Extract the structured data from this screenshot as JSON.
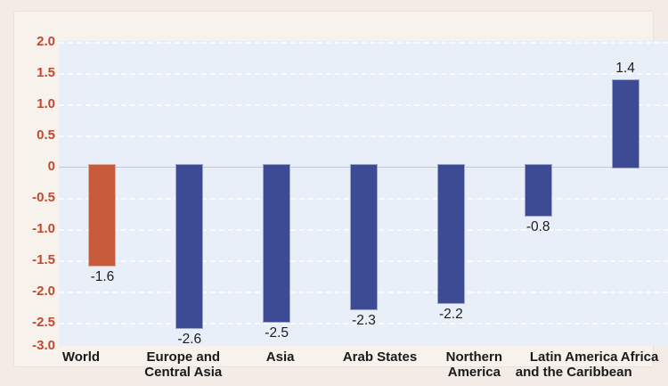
{
  "page": {
    "background": "#F2EBE6",
    "canvas_background": "#F8F2EC"
  },
  "chart_data": {
    "type": "bar",
    "title": "",
    "xlabel": "",
    "ylabel": "",
    "categories": [
      "World",
      "Europe and Central Asia",
      "Asia",
      "Arab States",
      "Northern America",
      "Latin America and the Caribbean",
      "Africa"
    ],
    "category_label_lines": [
      [
        "World"
      ],
      [
        "Europe and",
        "Central Asia"
      ],
      [
        "Asia"
      ],
      [
        "Arab States"
      ],
      [
        "Northern",
        "America"
      ],
      [
        "Latin America",
        "and the Caribbean"
      ],
      [
        "Africa"
      ]
    ],
    "values": [
      -1.6,
      -2.6,
      -2.5,
      -2.3,
      -2.2,
      -0.8,
      1.4
    ],
    "value_labels": [
      "-1.6",
      "-2.6",
      "-2.5",
      "-2.3",
      "-2.2",
      "-0.8",
      "1.4"
    ],
    "bar_colors": [
      "#C75B3C",
      "#3D4A94",
      "#3D4A94",
      "#3D4A94",
      "#3D4A94",
      "#3D4A94",
      "#3D4A94"
    ],
    "highlight_color": "#C75B3C",
    "series_color": "#3D4A94",
    "ylim": [
      -3.0,
      2.0
    ],
    "y_tick_step": 0.5,
    "y_ticks": [
      2.0,
      1.5,
      1.0,
      0.5,
      0,
      -0.5,
      -1.0,
      -1.5,
      -2.0,
      -2.5,
      -3.0
    ],
    "y_tick_labels": [
      "2.0",
      "1.5",
      "1.0",
      "0.5",
      "0",
      "-0.5",
      "-1.0",
      "-1.5",
      "-2.0",
      "-2.5",
      "-3.0"
    ],
    "grid": true,
    "legend": false,
    "colors": {
      "plot_bg": "#E9EFF8",
      "tick_label": "#C04A31",
      "value_label": "#1C1C1C",
      "category_label": "#1A1A1A",
      "gridline": "#FAFBFE",
      "zero_line": "#C5C8CC"
    }
  }
}
